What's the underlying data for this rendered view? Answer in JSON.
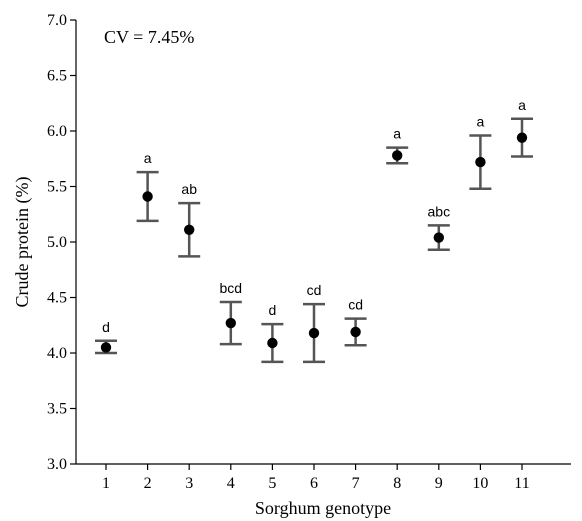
{
  "chart_data": {
    "type": "scatter",
    "annotation": "CV = 7.45%",
    "xlabel": "Sorghum genotype",
    "ylabel": "Crude protein (%)",
    "ylim": [
      3.0,
      7.0
    ],
    "yticks": [
      "3.0",
      "3.5",
      "4.0",
      "4.5",
      "5.0",
      "5.5",
      "6.0",
      "6.5",
      "7.0"
    ],
    "categories": [
      "1",
      "2",
      "3",
      "4",
      "5",
      "6",
      "7",
      "8",
      "9",
      "10",
      "11"
    ],
    "values": [
      4.05,
      5.41,
      5.11,
      4.27,
      4.09,
      4.18,
      4.19,
      5.78,
      5.04,
      5.72,
      5.94
    ],
    "error_low": [
      4.0,
      5.19,
      4.87,
      4.08,
      3.92,
      3.92,
      4.07,
      5.71,
      4.93,
      5.48,
      5.77
    ],
    "error_high": [
      4.11,
      5.63,
      5.35,
      4.46,
      4.26,
      4.44,
      4.31,
      5.85,
      5.15,
      5.96,
      6.11
    ],
    "letters": [
      "d",
      "a",
      "ab",
      "bcd",
      "d",
      "cd",
      "cd",
      "a",
      "abc",
      "a",
      "a"
    ],
    "grid": false
  }
}
